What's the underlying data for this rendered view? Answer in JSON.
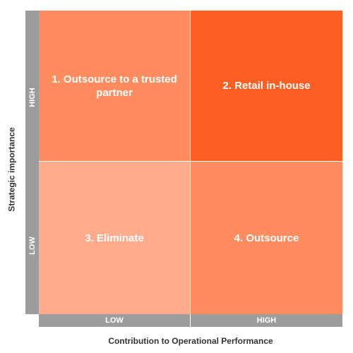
{
  "y_axis": {
    "title": "Strategic importance",
    "high_label": "HIGH",
    "low_label": "LOW"
  },
  "x_axis": {
    "title": "Contribution to Operational Performance",
    "low_label": "LOW",
    "high_label": "HIGH"
  },
  "quadrants": [
    {
      "label": "1. Outsource to a trusted partner",
      "color": "#ff8c5e"
    },
    {
      "label": "2. Retail in-house",
      "color": "#ff5e23"
    },
    {
      "label": "3. Eliminate",
      "color": "#ffab8c"
    },
    {
      "label": "4. Outsource",
      "color": "#ff8c5e"
    }
  ],
  "colors": {
    "axis_bar": "#9c9c9c",
    "axis_title_text": "#333333",
    "label_text": "#ffffff"
  }
}
